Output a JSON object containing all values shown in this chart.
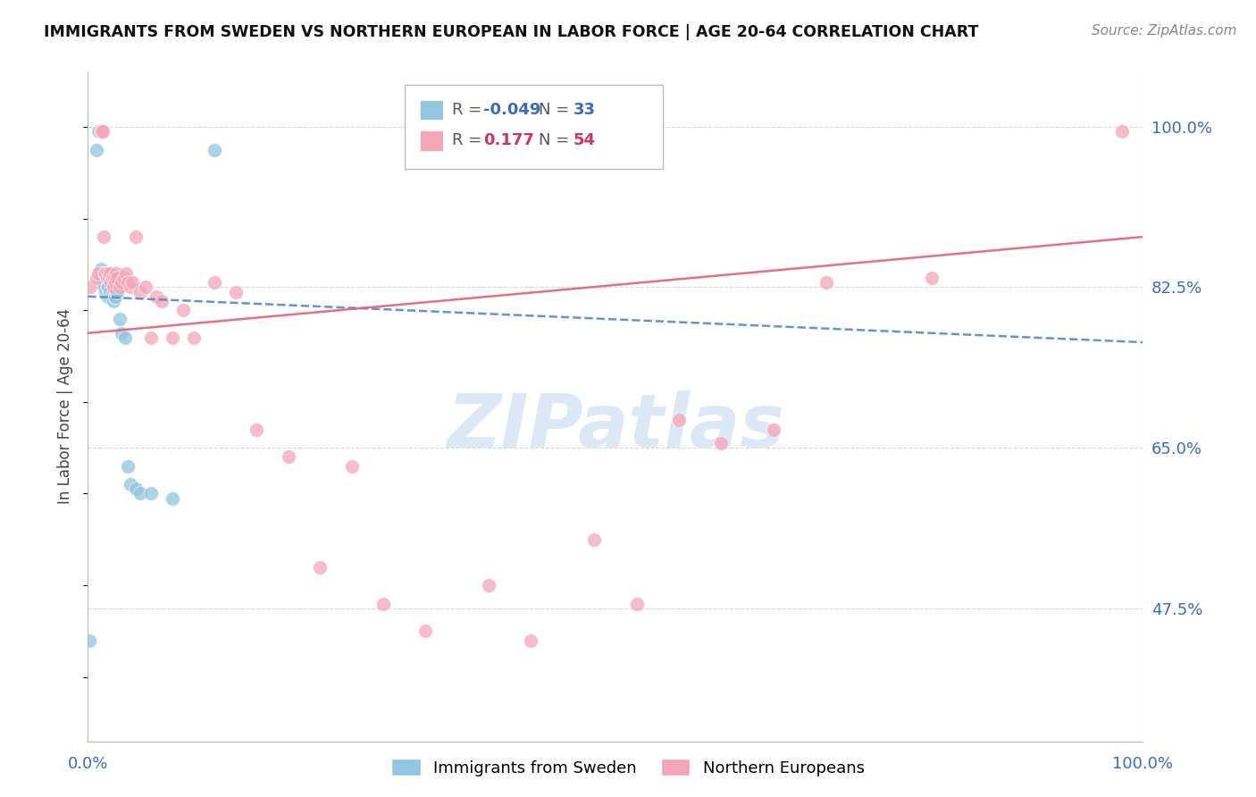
{
  "title": "IMMIGRANTS FROM SWEDEN VS NORTHERN EUROPEAN IN LABOR FORCE | AGE 20-64 CORRELATION CHART",
  "source": "Source: ZipAtlas.com",
  "ylabel": "In Labor Force | Age 20-64",
  "y_tick_values": [
    0.475,
    0.65,
    0.825,
    1.0
  ],
  "y_tick_labels": [
    "47.5%",
    "65.0%",
    "82.5%",
    "100.0%"
  ],
  "xlim": [
    0.0,
    1.0
  ],
  "ylim": [
    0.33,
    1.06
  ],
  "legend_label1": "Immigrants from Sweden",
  "legend_label2": "Northern Europeans",
  "R1": "-0.049",
  "N1": "33",
  "R2": "0.177",
  "N2": "54",
  "color1": "#92c5de",
  "color2": "#f4a6b8",
  "trendline1_color": "#5588cc",
  "trendline2_color": "#e0607a",
  "watermark": "ZIPatlas",
  "watermark_color": "#dce8f5",
  "background_color": "#ffffff",
  "grid_color": "#d8d8d8",
  "sweden_x": [
    0.001,
    0.008,
    0.01,
    0.011,
    0.012,
    0.013,
    0.014,
    0.015,
    0.015,
    0.016,
    0.017,
    0.018,
    0.018,
    0.019,
    0.02,
    0.021,
    0.022,
    0.023,
    0.024,
    0.025,
    0.026,
    0.027,
    0.028,
    0.03,
    0.032,
    0.035,
    0.038,
    0.04,
    0.045,
    0.05,
    0.06,
    0.08,
    0.12
  ],
  "sweden_y": [
    0.44,
    0.975,
    0.995,
    0.995,
    0.845,
    0.835,
    0.84,
    0.825,
    0.83,
    0.825,
    0.82,
    0.825,
    0.815,
    0.825,
    0.815,
    0.82,
    0.815,
    0.815,
    0.81,
    0.815,
    0.815,
    0.82,
    0.82,
    0.79,
    0.775,
    0.77,
    0.63,
    0.61,
    0.605,
    0.6,
    0.6,
    0.595,
    0.975
  ],
  "northern_x": [
    0.002,
    0.008,
    0.01,
    0.012,
    0.013,
    0.014,
    0.015,
    0.016,
    0.017,
    0.018,
    0.019,
    0.02,
    0.021,
    0.022,
    0.023,
    0.024,
    0.025,
    0.026,
    0.027,
    0.028,
    0.03,
    0.032,
    0.034,
    0.036,
    0.038,
    0.04,
    0.042,
    0.045,
    0.05,
    0.055,
    0.06,
    0.065,
    0.07,
    0.08,
    0.09,
    0.1,
    0.12,
    0.14,
    0.16,
    0.19,
    0.22,
    0.25,
    0.28,
    0.32,
    0.38,
    0.42,
    0.48,
    0.52,
    0.56,
    0.6,
    0.65,
    0.7,
    0.8,
    0.98
  ],
  "northern_y": [
    0.825,
    0.835,
    0.84,
    0.995,
    0.995,
    0.995,
    0.88,
    0.84,
    0.84,
    0.835,
    0.84,
    0.835,
    0.84,
    0.83,
    0.835,
    0.825,
    0.835,
    0.83,
    0.84,
    0.835,
    0.825,
    0.83,
    0.835,
    0.84,
    0.83,
    0.825,
    0.83,
    0.88,
    0.82,
    0.825,
    0.77,
    0.815,
    0.81,
    0.77,
    0.8,
    0.77,
    0.83,
    0.82,
    0.67,
    0.64,
    0.52,
    0.63,
    0.48,
    0.45,
    0.5,
    0.44,
    0.55,
    0.48,
    0.68,
    0.655,
    0.67,
    0.83,
    0.835,
    0.995
  ],
  "trendline1_x": [
    0.0,
    1.0
  ],
  "trendline1_y": [
    0.815,
    0.765
  ],
  "trendline2_x": [
    0.0,
    1.0
  ],
  "trendline2_y": [
    0.775,
    0.88
  ]
}
